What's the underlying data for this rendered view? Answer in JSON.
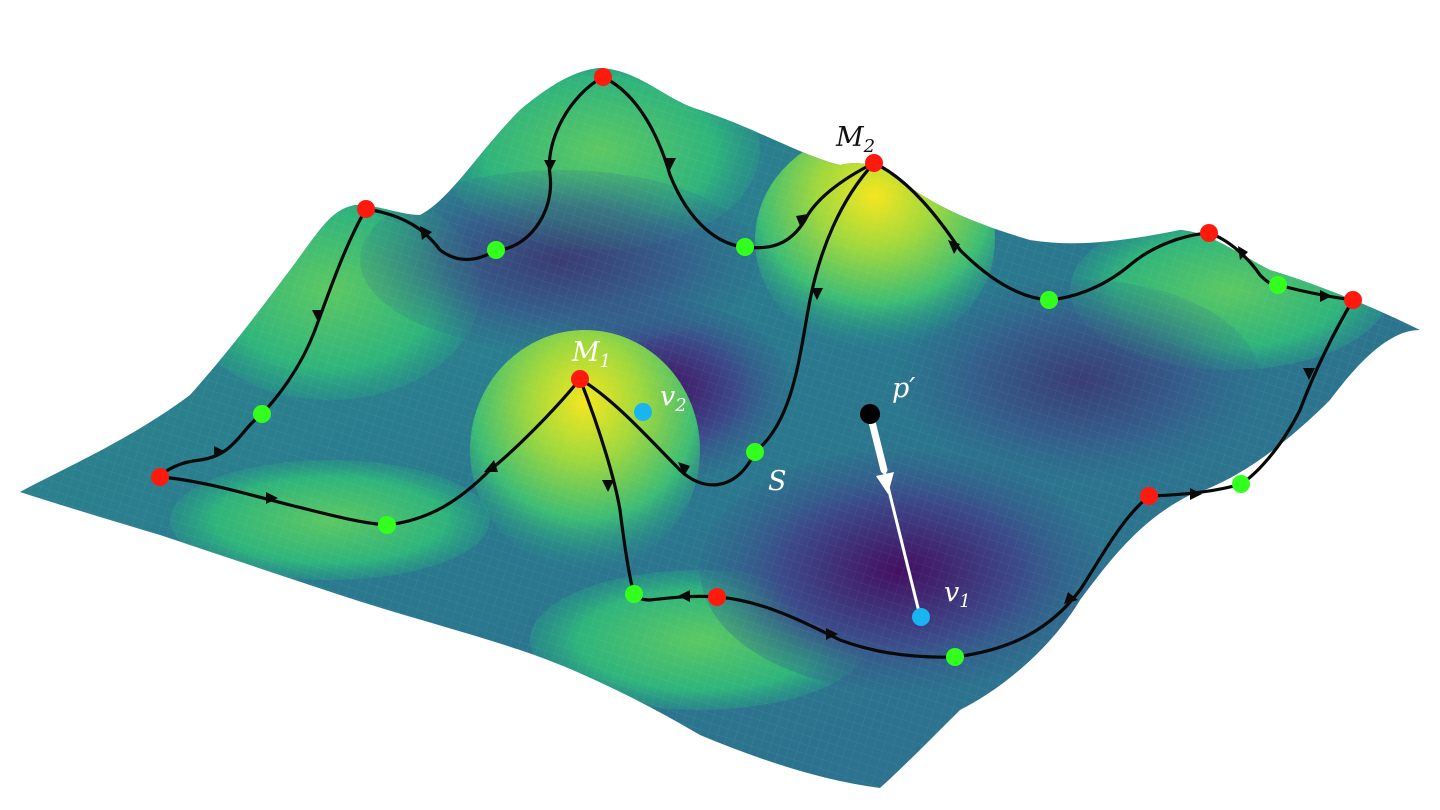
{
  "labels": {
    "M1": {
      "main": "M",
      "sub": "1"
    },
    "M2": {
      "main": "M",
      "sub": "2"
    },
    "v1": {
      "main": "v",
      "sub": "1"
    },
    "v2": {
      "main": "v",
      "sub": "2"
    },
    "p_prime": "p′",
    "S": "S"
  },
  "colors": {
    "maximum": "#ff1a0d",
    "saddle": "#33ff1f",
    "minimum": "#1ab5f0",
    "query_point": "#000000",
    "path": "#0a0a0a",
    "surface_low": "#440f62",
    "surface_mid": "#25868e",
    "surface_high": "#f4e61e"
  },
  "icons": {
    "maximum": "red-dot-icon",
    "saddle": "green-dot-icon",
    "minimum": "cyan-dot-icon",
    "query_point": "black-dot-icon"
  }
}
